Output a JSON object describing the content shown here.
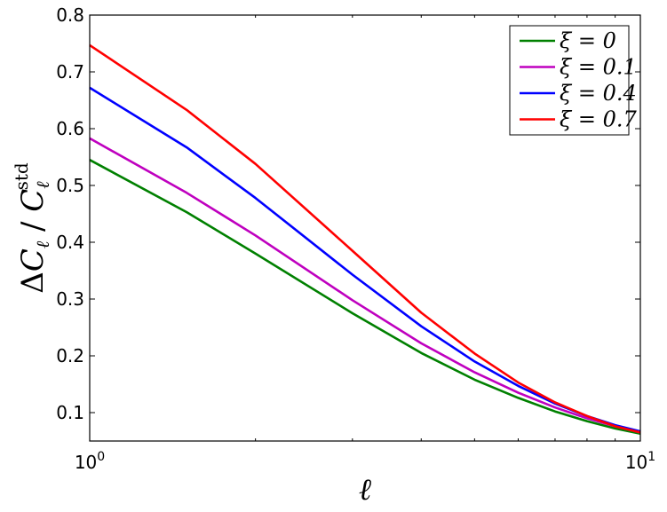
{
  "chart_data": {
    "type": "line",
    "xscale": "log",
    "xlim": [
      1,
      10
    ],
    "ylim": [
      0.05,
      0.8
    ],
    "xlabel": "ℓ",
    "ylabel": "ΔCℓ / Cℓstd",
    "ylabel_parts": {
      "delta": "Δ",
      "c1": "C",
      "sub1": "ℓ",
      "slash": " / ",
      "c2": "C",
      "sub2": "ℓ",
      "sup2": "std"
    },
    "grid": false,
    "legend_position": "top-right",
    "x_ticks": [
      {
        "value": 1,
        "base": "10",
        "exp": "0"
      },
      {
        "value": 10,
        "base": "10",
        "exp": "1"
      }
    ],
    "y_ticks": [
      0.1,
      0.2,
      0.3,
      0.4,
      0.5,
      0.6,
      0.7,
      0.8
    ],
    "y_tick_labels": [
      "0.1",
      "0.2",
      "0.3",
      "0.4",
      "0.5",
      "0.6",
      "0.7",
      "0.8"
    ],
    "x": [
      1,
      1.5,
      2,
      3,
      4,
      5,
      6,
      7,
      8,
      9,
      10
    ],
    "series": [
      {
        "name": "ξ = 0",
        "color": "#008000",
        "values": [
          0.545,
          0.453,
          0.38,
          0.275,
          0.205,
          0.158,
          0.126,
          0.102,
          0.085,
          0.072,
          0.063
        ]
      },
      {
        "name": "ξ = 0.1",
        "color": "#bf00bf",
        "values": [
          0.583,
          0.487,
          0.412,
          0.298,
          0.222,
          0.171,
          0.135,
          0.109,
          0.09,
          0.076,
          0.065
        ]
      },
      {
        "name": "ξ = 0.4",
        "color": "#0000ff",
        "values": [
          0.672,
          0.567,
          0.478,
          0.343,
          0.252,
          0.19,
          0.147,
          0.116,
          0.094,
          0.078,
          0.067
        ]
      },
      {
        "name": "ξ = 0.7",
        "color": "#ff0000",
        "values": [
          0.747,
          0.633,
          0.538,
          0.385,
          0.276,
          0.204,
          0.153,
          0.118,
          0.094,
          0.076,
          0.065
        ]
      }
    ]
  }
}
